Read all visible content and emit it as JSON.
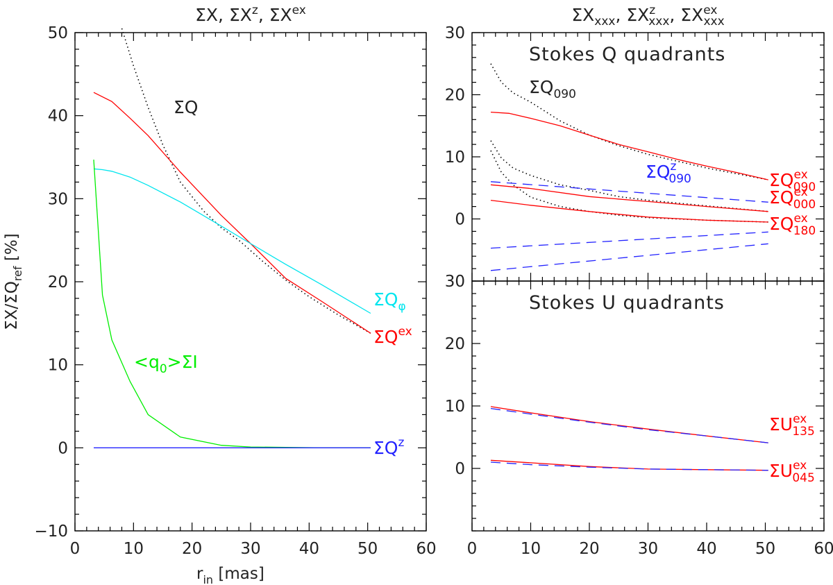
{
  "chart_data": [
    {
      "type": "line",
      "panel": "left",
      "title": "ΣX,  ΣX^z,  ΣX^ex",
      "title_parts": {
        "t1": "ΣX,  ΣX",
        "s1": "z",
        "t2": ",  ΣX",
        "s2": "ex"
      },
      "xlabel_main": "r",
      "xlabel_sub": "in",
      "xlabel_rest": " [mas]",
      "ylabel": "ΣX/ΣQ_ref [%]",
      "ylabel_parts": {
        "a": "ΣX/ΣQ",
        "sub": "ref",
        "b": " [%]"
      },
      "xlim": [
        0,
        60
      ],
      "ylim": [
        -10,
        50
      ],
      "xticks": [
        0,
        10,
        20,
        30,
        40,
        50,
        60
      ],
      "yticks": [
        -10,
        0,
        10,
        20,
        30,
        40,
        50
      ],
      "xticklabels": [
        "0",
        "10",
        "20",
        "30",
        "40",
        "50",
        "60"
      ],
      "yticklabels": [
        "−10",
        "0",
        "10",
        "20",
        "30",
        "40",
        "50"
      ],
      "series": [
        {
          "name": "ΣQ",
          "color": "#000000",
          "style": "dotted",
          "x": [
            8,
            10,
            12.5,
            15,
            18,
            22,
            25,
            28,
            32,
            36,
            40,
            45,
            50.5
          ],
          "y": [
            50.5,
            46,
            41,
            36.5,
            32,
            28.5,
            26.5,
            25,
            22.5,
            20.2,
            18.2,
            16,
            13.8
          ]
        },
        {
          "name": "ΣQ^ex",
          "color": "#ff0000",
          "style": "solid",
          "x": [
            3.2,
            6.3,
            9.4,
            12.5,
            18,
            25,
            30,
            36,
            42,
            50.5
          ],
          "y": [
            42.8,
            41.7,
            39.7,
            37.6,
            33.2,
            28,
            24.6,
            20.4,
            17.7,
            13.8
          ]
        },
        {
          "name": "ΣQ_φ",
          "color": "#00e5ee",
          "style": "solid",
          "x": [
            3.2,
            4.7,
            6.3,
            9.4,
            12.5,
            18,
            25,
            30,
            36,
            42,
            50.5
          ],
          "y": [
            33.6,
            33.5,
            33.3,
            32.6,
            31.6,
            29.6,
            26.7,
            24.6,
            22.1,
            19.7,
            16.2
          ]
        },
        {
          "name": "<q0>ΣI",
          "color": "#00ee00",
          "style": "solid",
          "x": [
            3.2,
            4.7,
            6.3,
            9.4,
            12.5,
            18,
            25,
            30,
            36,
            42,
            50.5
          ],
          "y": [
            34.7,
            18.4,
            13,
            8,
            4,
            1.3,
            0.3,
            0.1,
            0.05,
            0,
            0
          ]
        },
        {
          "name": "ΣQ^z",
          "color": "#2222ff",
          "style": "solid",
          "x": [
            3.2,
            50.5
          ],
          "y": [
            0,
            0
          ]
        }
      ],
      "labels": [
        {
          "key": "sq",
          "base": "ΣQ",
          "sup": "",
          "sub": "",
          "color": "#222222"
        },
        {
          "key": "sqphi",
          "base": "ΣQ",
          "sup": "",
          "sub": "φ",
          "color": "#00e5ee"
        },
        {
          "key": "sqex",
          "base": "ΣQ",
          "sup": "ex",
          "sub": "",
          "color": "#ff0000"
        },
        {
          "key": "q0",
          "base": "<q",
          "sup": "",
          "sub": "0",
          "tail": ">ΣI",
          "color": "#00ee00"
        },
        {
          "key": "sqz",
          "base": "ΣQ",
          "sup": "z",
          "sub": "",
          "color": "#2222ff"
        }
      ]
    },
    {
      "type": "line",
      "panel": "right-top",
      "title": "ΣX_xxx,  ΣX^z_xxx,  ΣX^ex_xxx",
      "title_parts": {
        "t1": "ΣX",
        "sub": "xxx",
        "t2": ",  ΣX",
        "s2": "z",
        "t3": ",  ΣX",
        "s3": "ex"
      },
      "heading": "Stokes Q quadrants",
      "xlim": [
        0,
        60
      ],
      "ylim": [
        -10,
        30
      ],
      "yticks": [
        0,
        10,
        20,
        30
      ],
      "yticklabels": [
        "0",
        "10",
        "20",
        "30"
      ],
      "series": [
        {
          "name": "ΣQ_090",
          "color": "#000000",
          "style": "dotted",
          "x": [
            3.2,
            5,
            7,
            10,
            15,
            20,
            25,
            30,
            35,
            40,
            45,
            50.5
          ],
          "y": [
            25,
            22,
            20.3,
            18.8,
            15.8,
            13.5,
            11.8,
            10.4,
            9.3,
            8.2,
            7.3,
            6.3
          ]
        },
        {
          "name": "ΣQ_000",
          "color": "#000000",
          "style": "dotted",
          "x": [
            3.2,
            5,
            7,
            10,
            15,
            20,
            25,
            30,
            40,
            50.5
          ],
          "y": [
            12.6,
            9.8,
            8.2,
            7,
            5.5,
            4.6,
            3.6,
            3,
            2.1,
            1.2
          ]
        },
        {
          "name": "ΣQ_180",
          "color": "#000000",
          "style": "dotted",
          "x": [
            3.2,
            5,
            7,
            10,
            15,
            20,
            25,
            30,
            40,
            50.5
          ],
          "y": [
            11,
            7.5,
            5.5,
            3.5,
            2,
            1.2,
            0.6,
            0.2,
            -0.2,
            -0.5
          ]
        },
        {
          "name": "ΣQ^ex_090",
          "color": "#ff0000",
          "style": "solid",
          "x": [
            3.2,
            6.3,
            10,
            15,
            20,
            25,
            30,
            35,
            40,
            45,
            50.5
          ],
          "y": [
            17.2,
            17,
            16.2,
            15,
            13.5,
            12,
            10.8,
            9.6,
            8.5,
            7.5,
            6.3
          ]
        },
        {
          "name": "ΣQ^ex_000",
          "color": "#ff0000",
          "style": "solid",
          "x": [
            3.2,
            10,
            20,
            30,
            40,
            50.5
          ],
          "y": [
            5.5,
            4.9,
            3.6,
            2.8,
            2,
            1.2
          ]
        },
        {
          "name": "ΣQ^ex_180",
          "color": "#ff0000",
          "style": "solid",
          "x": [
            3.2,
            10,
            20,
            30,
            40,
            50.5
          ],
          "y": [
            3,
            2.2,
            1.2,
            0.3,
            -0.2,
            -0.5
          ]
        },
        {
          "name": "ΣQ^z_090",
          "color": "#2222ff",
          "style": "dashed",
          "x": [
            3.2,
            50.5
          ],
          "y": [
            6,
            2.7
          ]
        },
        {
          "name": "ΣQ^z_000",
          "color": "#2222ff",
          "style": "dashed",
          "x": [
            3.2,
            50.5
          ],
          "y": [
            -4.7,
            -2.1
          ]
        },
        {
          "name": "ΣQ^z_180",
          "color": "#2222ff",
          "style": "dashed",
          "x": [
            3.2,
            50.5
          ],
          "y": [
            -8.3,
            -4
          ]
        }
      ],
      "labels": [
        {
          "key": "q090",
          "base": "ΣQ",
          "sup": "",
          "sub": "090",
          "color": "#222222"
        },
        {
          "key": "qz090",
          "base": "ΣQ",
          "sup": "z",
          "sub": "090",
          "color": "#2222ff"
        },
        {
          "key": "qex090",
          "base": "ΣQ",
          "sup": "ex",
          "sub": "090",
          "color": "#ff0000"
        },
        {
          "key": "qex000",
          "base": "ΣQ",
          "sup": "ex",
          "sub": "000",
          "color": "#ff0000"
        },
        {
          "key": "qex180",
          "base": "ΣQ",
          "sup": "ex",
          "sub": "180",
          "color": "#ff0000"
        }
      ]
    },
    {
      "type": "line",
      "panel": "right-bottom",
      "heading": "Stokes U quadrants",
      "xlim": [
        0,
        60
      ],
      "ylim": [
        -10,
        30
      ],
      "xticks": [
        0,
        10,
        20,
        30,
        40,
        50,
        60
      ],
      "xticklabels": [
        "0",
        "10",
        "20",
        "30",
        "40",
        "50",
        "60"
      ],
      "yticks": [
        0,
        10,
        20,
        30
      ],
      "yticklabels": [
        "0",
        "10",
        "20",
        "30"
      ],
      "series": [
        {
          "name": "ΣU^ex_135",
          "color": "#ff0000",
          "style": "solid",
          "x": [
            3.2,
            10,
            20,
            30,
            40,
            50.5
          ],
          "y": [
            9.9,
            8.9,
            7.5,
            6.3,
            5.2,
            4.1
          ]
        },
        {
          "name": "ΣU^z_135",
          "color": "#2222ff",
          "style": "dashed",
          "x": [
            3.2,
            10,
            20,
            30,
            40,
            50.5
          ],
          "y": [
            9.6,
            8.7,
            7.4,
            6.2,
            5.2,
            4.1
          ]
        },
        {
          "name": "ΣU^ex_045",
          "color": "#ff0000",
          "style": "solid",
          "x": [
            3.2,
            10,
            20,
            30,
            40,
            50.5
          ],
          "y": [
            1.3,
            0.9,
            0.3,
            -0.1,
            -0.2,
            -0.3
          ]
        },
        {
          "name": "ΣU^z_045",
          "color": "#2222ff",
          "style": "dashed",
          "x": [
            3.2,
            10,
            20,
            30,
            40,
            50.5
          ],
          "y": [
            1,
            0.6,
            0.2,
            -0.1,
            -0.2,
            -0.3
          ]
        }
      ],
      "labels": [
        {
          "key": "u135",
          "base": "ΣU",
          "sup": "ex",
          "sub": "135",
          "color": "#ff0000"
        },
        {
          "key": "u045",
          "base": "ΣU",
          "sup": "ex",
          "sub": "045",
          "color": "#ff0000"
        }
      ]
    }
  ]
}
